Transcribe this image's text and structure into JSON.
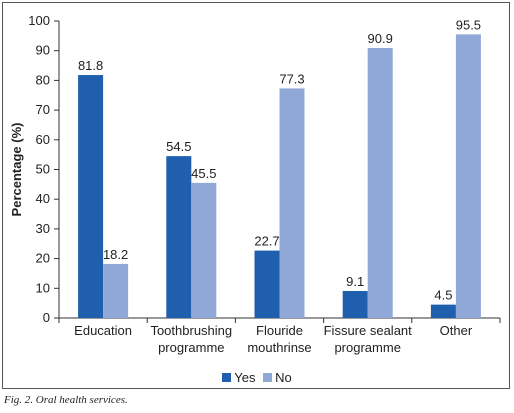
{
  "chart_data": {
    "type": "bar",
    "categories": [
      [
        "Education"
      ],
      [
        "Toothbrushing",
        "programme"
      ],
      [
        "Flouride",
        "mouthrinse"
      ],
      [
        "Fissure sealant",
        "programme"
      ],
      [
        "Other"
      ]
    ],
    "series": [
      {
        "name": "Yes",
        "values": [
          81.8,
          54.5,
          22.7,
          9.1,
          4.5
        ],
        "value_labels": [
          "81.8",
          "54.5",
          "22.7",
          "9.1",
          "4.5"
        ],
        "color": "#1f5fad"
      },
      {
        "name": "No",
        "values": [
          18.2,
          45.5,
          77.3,
          90.9,
          95.5
        ],
        "value_labels": [
          "18.2",
          "45.5",
          "77.3",
          "90.9",
          "95.5"
        ],
        "color": "#8fa8d8"
      }
    ],
    "ylabel": "Percentage (%)",
    "ylim": [
      0,
      100
    ],
    "yticks": [
      "0",
      "10",
      "20",
      "30",
      "40",
      "50",
      "60",
      "70",
      "80",
      "90",
      "100"
    ],
    "grid": false,
    "legend_position": "bottom"
  },
  "caption": "Fig. 2. Oral health services."
}
